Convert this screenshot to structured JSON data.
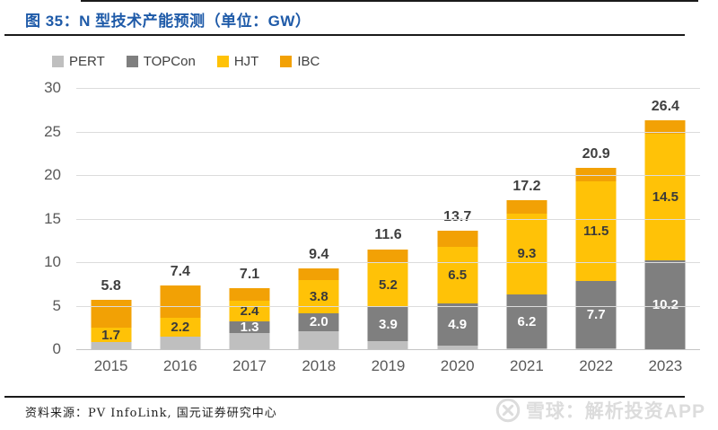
{
  "figure": {
    "title": "图 35：N 型技术产能预测（单位：GW）",
    "source": "资料来源：PV InfoLink, 国元证券研究中心"
  },
  "watermark": {
    "logo": "xueqiu-logo",
    "text": "雪球：解析投资APP"
  },
  "colors": {
    "title_blue": "#1E5AA8",
    "rule_dark": "#1A1A1A",
    "grid_gray": "#DCDCDC",
    "tick_text": "#595959",
    "total_text": "#3F3F3F",
    "watermark_gray": "#DCDCDC"
  },
  "chart_data": {
    "type": "bar",
    "stacked": true,
    "title": "N 型技术产能预测",
    "unit": "GW",
    "categories": [
      "2015",
      "2016",
      "2017",
      "2018",
      "2019",
      "2020",
      "2021",
      "2022",
      "2023"
    ],
    "series": [
      {
        "name": "PERT",
        "color": "#BFBFBF",
        "label_color": "#3F3F3F",
        "values": [
          0.9,
          1.5,
          2.0,
          2.2,
          1.0,
          0.5,
          0.2,
          0.2,
          0.1
        ],
        "labels": [
          "",
          "",
          "",
          "",
          "",
          "",
          "",
          "",
          ""
        ]
      },
      {
        "name": "TOPCon",
        "color": "#7F7F7F",
        "label_color": "#FFFFFF",
        "values": [
          0,
          0,
          1.3,
          2.0,
          3.9,
          4.9,
          6.2,
          7.7,
          10.2
        ],
        "labels": [
          "",
          "",
          "1.3",
          "2.0",
          "3.9",
          "4.9",
          "6.2",
          "7.7",
          "10.2"
        ]
      },
      {
        "name": "HJT",
        "color": "#FFC207",
        "label_color": "#3A3A3A",
        "values": [
          1.7,
          2.2,
          2.4,
          3.8,
          5.2,
          6.5,
          9.3,
          11.5,
          14.5
        ],
        "labels": [
          "1.7",
          "2.2",
          "2.4",
          "3.8",
          "5.2",
          "6.5",
          "9.3",
          "11.5",
          "14.5"
        ]
      },
      {
        "name": "IBC",
        "color": "#F2A105",
        "label_color": "#3A3A3A",
        "values": [
          3.2,
          3.7,
          1.4,
          1.4,
          1.5,
          1.8,
          1.5,
          1.5,
          1.6
        ],
        "labels": [
          "",
          "",
          "",
          "",
          "",
          "",
          "",
          "",
          ""
        ]
      }
    ],
    "totals": [
      "5.8",
      "7.4",
      "7.1",
      "9.4",
      "11.6",
      "13.7",
      "17.2",
      "20.9",
      "26.4"
    ],
    "ylim": [
      0,
      30
    ],
    "yticks": [
      0,
      5,
      10,
      15,
      20,
      25,
      30
    ],
    "grid": true,
    "legend_position": "top-left"
  }
}
